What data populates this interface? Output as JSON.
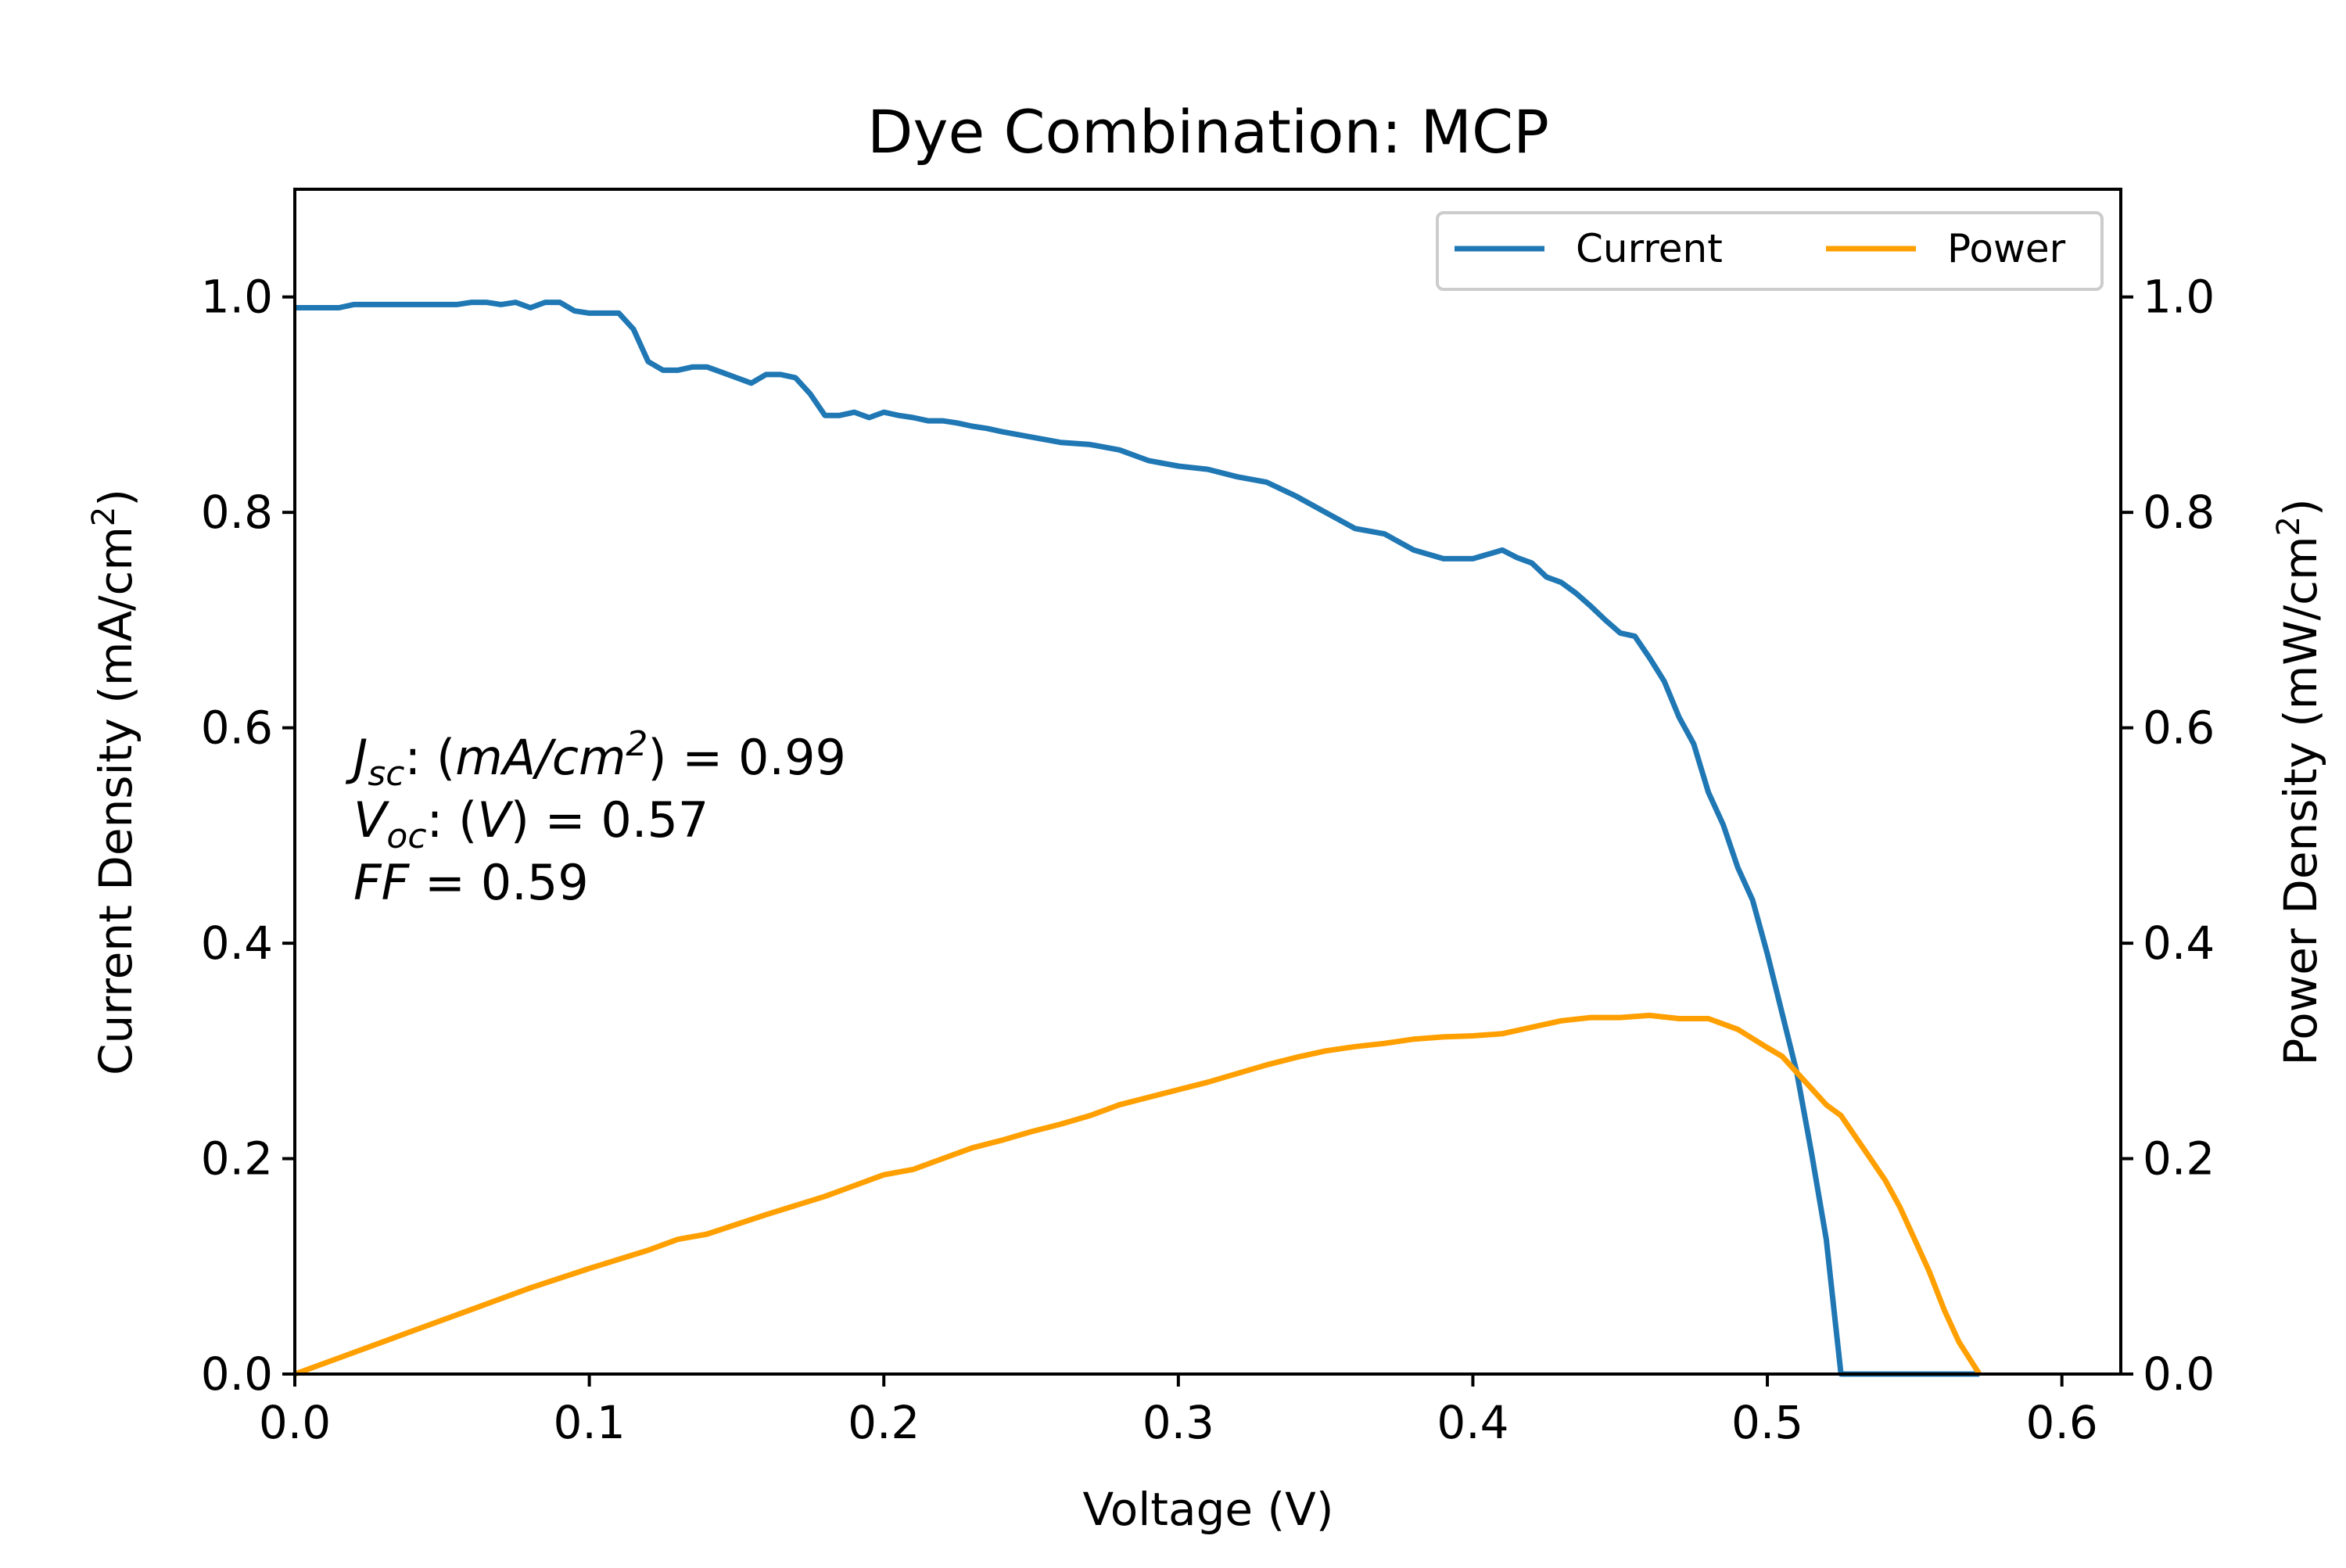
{
  "chart_data": {
    "type": "line",
    "title": "Dye Combination: MCP",
    "xlabel": "Voltage (V)",
    "ylabel_left": {
      "text": "Current Density (mA/cm",
      "sup": "2",
      "tail": ")"
    },
    "ylabel_right": {
      "text": "Power Density (mW/cm",
      "sup": "2",
      "tail": ")"
    },
    "xlim": [
      0,
      0.62
    ],
    "ylim_left": [
      0,
      1.1
    ],
    "ylim_right": [
      0,
      1.1
    ],
    "x_ticks": [
      "0.0",
      "0.1",
      "0.2",
      "0.3",
      "0.4",
      "0.5",
      "0.6"
    ],
    "y_ticks_left": [
      "0.0",
      "0.2",
      "0.4",
      "0.6",
      "0.8",
      "1.0"
    ],
    "y_ticks_right": [
      "0.0",
      "0.2",
      "0.4",
      "0.6",
      "0.8",
      "1.0"
    ],
    "grid": false,
    "legend_position": "top-right",
    "annotation": {
      "jsc": {
        "sym": "J",
        "sub": "sc",
        "mid": ": (",
        "unit": "mA/cm",
        "sup": "2",
        "tail": ") = 0.99"
      },
      "voc": {
        "sym": "V",
        "sub": "oc",
        "mid": ": (",
        "unit": "V",
        "tail": ") = 0.57"
      },
      "ff": {
        "sym": "FF",
        "tail": " = 0.59"
      }
    },
    "series": [
      {
        "name": "Current",
        "axis": "left",
        "color": "#1f77b4",
        "x": [
          0.0,
          0.015,
          0.02,
          0.04,
          0.05,
          0.055,
          0.06,
          0.065,
          0.07,
          0.075,
          0.08,
          0.085,
          0.09,
          0.095,
          0.1,
          0.105,
          0.11,
          0.115,
          0.12,
          0.125,
          0.13,
          0.135,
          0.14,
          0.145,
          0.15,
          0.155,
          0.16,
          0.165,
          0.17,
          0.175,
          0.18,
          0.185,
          0.19,
          0.195,
          0.2,
          0.205,
          0.21,
          0.215,
          0.22,
          0.225,
          0.23,
          0.235,
          0.24,
          0.25,
          0.26,
          0.27,
          0.28,
          0.29,
          0.3,
          0.31,
          0.32,
          0.33,
          0.34,
          0.35,
          0.36,
          0.37,
          0.38,
          0.39,
          0.4,
          0.41,
          0.415,
          0.42,
          0.425,
          0.43,
          0.435,
          0.44,
          0.445,
          0.45,
          0.455,
          0.46,
          0.465,
          0.47,
          0.475,
          0.48,
          0.485,
          0.49,
          0.495,
          0.5,
          0.505,
          0.51,
          0.515,
          0.52,
          0.525,
          0.53,
          0.535,
          0.54,
          0.545,
          0.55,
          0.555,
          0.56,
          0.565,
          0.572
        ],
        "y": [
          0.99,
          0.99,
          0.993,
          0.993,
          0.993,
          0.993,
          0.995,
          0.995,
          0.993,
          0.995,
          0.99,
          0.995,
          0.995,
          0.987,
          0.985,
          0.985,
          0.985,
          0.97,
          0.94,
          0.932,
          0.932,
          0.935,
          0.935,
          0.93,
          0.925,
          0.92,
          0.928,
          0.928,
          0.925,
          0.91,
          0.89,
          0.89,
          0.893,
          0.888,
          0.893,
          0.89,
          0.888,
          0.885,
          0.885,
          0.883,
          0.88,
          0.878,
          0.875,
          0.87,
          0.865,
          0.863,
          0.858,
          0.848,
          0.843,
          0.84,
          0.833,
          0.828,
          0.815,
          0.8,
          0.785,
          0.78,
          0.765,
          0.757,
          0.757,
          0.765,
          0.758,
          0.753,
          0.74,
          0.735,
          0.725,
          0.713,
          0.7,
          0.688,
          0.685,
          0.665,
          0.643,
          0.61,
          0.585,
          0.54,
          0.51,
          0.47,
          0.44,
          0.39,
          0.335,
          0.28,
          0.205,
          0.125,
          0.0,
          0.0,
          0.0,
          0.0,
          0.0,
          0.0,
          0.0,
          0.0,
          0.0,
          0.0
        ]
      },
      {
        "name": "Power",
        "axis": "right",
        "color": "#ff9f00",
        "x": [
          0.0,
          0.02,
          0.04,
          0.06,
          0.08,
          0.1,
          0.12,
          0.13,
          0.14,
          0.16,
          0.18,
          0.19,
          0.2,
          0.21,
          0.22,
          0.23,
          0.24,
          0.25,
          0.26,
          0.27,
          0.28,
          0.29,
          0.3,
          0.31,
          0.32,
          0.33,
          0.34,
          0.35,
          0.36,
          0.37,
          0.38,
          0.39,
          0.4,
          0.41,
          0.42,
          0.43,
          0.44,
          0.45,
          0.46,
          0.47,
          0.48,
          0.49,
          0.5,
          0.505,
          0.51,
          0.515,
          0.52,
          0.525,
          0.53,
          0.535,
          0.54,
          0.545,
          0.55,
          0.555,
          0.56,
          0.565,
          0.572
        ],
        "y": [
          0.0,
          0.02,
          0.04,
          0.06,
          0.08,
          0.098,
          0.115,
          0.125,
          0.13,
          0.148,
          0.165,
          0.175,
          0.185,
          0.19,
          0.2,
          0.21,
          0.217,
          0.225,
          0.232,
          0.24,
          0.25,
          0.257,
          0.264,
          0.271,
          0.279,
          0.287,
          0.294,
          0.3,
          0.304,
          0.307,
          0.311,
          0.313,
          0.314,
          0.316,
          0.322,
          0.328,
          0.331,
          0.331,
          0.333,
          0.33,
          0.33,
          0.32,
          0.303,
          0.295,
          0.28,
          0.265,
          0.25,
          0.24,
          0.22,
          0.2,
          0.18,
          0.155,
          0.125,
          0.095,
          0.06,
          0.03,
          0.0
        ]
      }
    ]
  }
}
